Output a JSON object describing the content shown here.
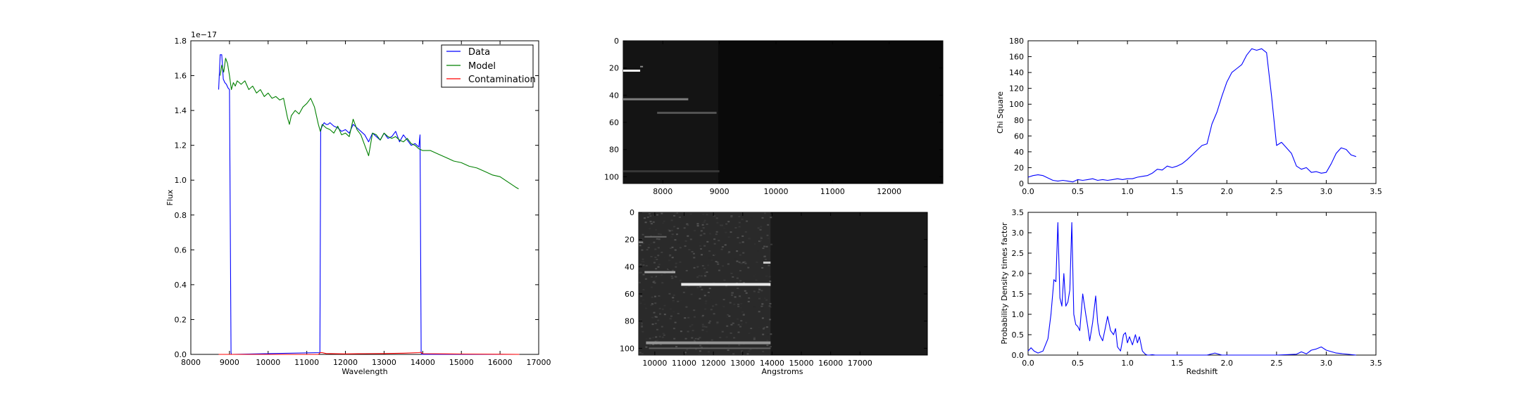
{
  "chart_data": [
    {
      "id": "spectrum",
      "type": "line",
      "xlabel": "Wavelength",
      "ylabel": "Flux",
      "xlim": [
        8000,
        17000
      ],
      "ylim": [
        0,
        1.8
      ],
      "y_offset_text": "1e−17",
      "xticks": [
        "8000",
        "9000",
        "10000",
        "11000",
        "12000",
        "13000",
        "14000",
        "15000",
        "16000",
        "17000"
      ],
      "yticks": [
        "0.0",
        "0.2",
        "0.4",
        "0.6",
        "0.8",
        "1.0",
        "1.2",
        "1.4",
        "1.6",
        "1.8"
      ],
      "legend": "top-right",
      "series": [
        {
          "name": "Data",
          "color": "#0000ff",
          "x": [
            8720,
            8760,
            8800,
            8840,
            8880,
            8920,
            8960,
            9000,
            9040,
            9050,
            11340,
            11360,
            11380,
            11400,
            11450,
            11500,
            11550,
            11600,
            11700,
            11800,
            11900,
            12000,
            12100,
            12200,
            12300,
            12400,
            12500,
            12600,
            12700,
            12800,
            12900,
            13000,
            13100,
            13200,
            13300,
            13400,
            13500,
            13600,
            13700,
            13800,
            13900,
            13930,
            13960,
            13970,
            14500,
            15000,
            16000,
            16500
          ],
          "y": [
            1.52,
            1.72,
            1.72,
            1.58,
            1.56,
            1.55,
            1.53,
            1.52,
            0.01,
            0.0,
            0.01,
            1.28,
            1.3,
            1.31,
            1.33,
            1.32,
            1.32,
            1.33,
            1.31,
            1.3,
            1.28,
            1.29,
            1.27,
            1.32,
            1.3,
            1.28,
            1.26,
            1.22,
            1.27,
            1.25,
            1.23,
            1.27,
            1.24,
            1.25,
            1.28,
            1.22,
            1.26,
            1.23,
            1.2,
            1.21,
            1.19,
            1.26,
            0.01,
            0.0,
            0.0,
            0.0,
            0.0,
            0.0
          ]
        },
        {
          "name": "Model",
          "color": "#008000",
          "x": [
            8760,
            8800,
            8850,
            8900,
            8950,
            9000,
            9050,
            9100,
            9150,
            9200,
            9300,
            9400,
            9500,
            9600,
            9700,
            9800,
            9900,
            10000,
            10100,
            10200,
            10300,
            10400,
            10500,
            10550,
            10600,
            10700,
            10800,
            10900,
            11000,
            11100,
            11200,
            11300,
            11350,
            11400,
            11500,
            11600,
            11700,
            11800,
            11900,
            12000,
            12100,
            12200,
            12300,
            12400,
            12500,
            12600,
            12700,
            12800,
            12900,
            13000,
            13100,
            13200,
            13300,
            13400,
            13500,
            13600,
            13700,
            13800,
            13900,
            14000,
            14200,
            14400,
            14600,
            14800,
            15000,
            15200,
            15400,
            15600,
            15800,
            16000,
            16200,
            16400,
            16480
          ],
          "y": [
            1.6,
            1.66,
            1.62,
            1.7,
            1.67,
            1.6,
            1.52,
            1.56,
            1.54,
            1.57,
            1.55,
            1.57,
            1.52,
            1.54,
            1.5,
            1.52,
            1.48,
            1.5,
            1.47,
            1.48,
            1.46,
            1.47,
            1.36,
            1.32,
            1.37,
            1.4,
            1.38,
            1.42,
            1.44,
            1.47,
            1.42,
            1.32,
            1.28,
            1.32,
            1.3,
            1.29,
            1.27,
            1.31,
            1.26,
            1.27,
            1.25,
            1.35,
            1.29,
            1.26,
            1.2,
            1.14,
            1.27,
            1.26,
            1.23,
            1.27,
            1.25,
            1.24,
            1.25,
            1.23,
            1.22,
            1.24,
            1.21,
            1.2,
            1.18,
            1.17,
            1.17,
            1.15,
            1.13,
            1.11,
            1.1,
            1.08,
            1.07,
            1.05,
            1.03,
            1.02,
            0.99,
            0.96,
            0.95
          ]
        },
        {
          "name": "Contamination",
          "color": "#ff0000",
          "x": [
            8720,
            9000,
            10000,
            11000,
            11300,
            11350,
            11400,
            11500,
            12000,
            12500,
            13000,
            13500,
            13900,
            13950,
            14000,
            15000,
            16000,
            16500
          ],
          "y": [
            0.0,
            0.0,
            0.0,
            0.0,
            0.0,
            0.01,
            0.01,
            0.005,
            0.003,
            0.004,
            0.005,
            0.007,
            0.01,
            0.012,
            0.004,
            0.002,
            0.001,
            0.0
          ]
        }
      ]
    },
    {
      "id": "image_top",
      "type": "heatmap",
      "xticks": [
        "8000",
        "9000",
        "10000",
        "11000",
        "12000"
      ],
      "yticks": [
        "0",
        "20",
        "40",
        "60",
        "80",
        "100"
      ],
      "xlim": [
        7300,
        12950
      ],
      "ylim": [
        105,
        0
      ],
      "streaks": [
        {
          "x0": 7300,
          "x1": 7600,
          "y": 22,
          "w": 3,
          "level": 1.0
        },
        {
          "x0": 7600,
          "x1": 7650,
          "y": 19,
          "w": 2,
          "level": 0.5
        },
        {
          "x0": 7300,
          "x1": 8450,
          "y": 43,
          "w": 3,
          "level": 0.45
        },
        {
          "x0": 7900,
          "x1": 8950,
          "y": 53,
          "w": 3,
          "level": 0.25
        },
        {
          "x0": 7300,
          "x1": 9000,
          "y": 96,
          "w": 3,
          "level": 0.12
        }
      ]
    },
    {
      "id": "image_bottom",
      "type": "heatmap",
      "xlabel": "Angstroms",
      "xticks": [
        "10000",
        "11000",
        "12000",
        "13000",
        "14000",
        "15000",
        "16000",
        "17000"
      ],
      "yticks": [
        "0",
        "20",
        "40",
        "60",
        "80",
        "100"
      ],
      "xlim": [
        9450,
        19300
      ],
      "ylim": [
        105,
        0
      ],
      "streaks": [
        {
          "x0": 9450,
          "x1": 9600,
          "y": 22,
          "w": 2,
          "level": 0.5
        },
        {
          "x0": 9650,
          "x1": 10400,
          "y": 18,
          "w": 2,
          "level": 0.35
        },
        {
          "x0": 9650,
          "x1": 10700,
          "y": 44,
          "w": 3,
          "level": 0.65
        },
        {
          "x0": 10900,
          "x1": 13950,
          "y": 53,
          "w": 4,
          "level": 0.95
        },
        {
          "x0": 13700,
          "x1": 13950,
          "y": 37,
          "w": 3,
          "level": 0.8
        },
        {
          "x0": 9700,
          "x1": 13950,
          "y": 96,
          "w": 4,
          "level": 0.55
        },
        {
          "x0": 9800,
          "x1": 13950,
          "y": 100,
          "w": 2,
          "level": 0.3
        }
      ]
    },
    {
      "id": "chisq",
      "type": "line",
      "ylabel": "Chi Square",
      "xlim": [
        0,
        3.5
      ],
      "ylim": [
        0,
        180
      ],
      "xticks": [
        "0.0",
        "0.5",
        "1.0",
        "1.5",
        "2.0",
        "2.5",
        "3.0",
        "3.5"
      ],
      "yticks": [
        "0",
        "20",
        "40",
        "60",
        "80",
        "100",
        "120",
        "140",
        "160",
        "180"
      ],
      "series": [
        {
          "color": "#0000ff",
          "x": [
            0.0,
            0.05,
            0.1,
            0.15,
            0.2,
            0.25,
            0.3,
            0.35,
            0.4,
            0.45,
            0.5,
            0.55,
            0.6,
            0.65,
            0.7,
            0.75,
            0.8,
            0.85,
            0.9,
            0.95,
            1.0,
            1.05,
            1.1,
            1.15,
            1.2,
            1.25,
            1.3,
            1.35,
            1.4,
            1.45,
            1.5,
            1.55,
            1.6,
            1.65,
            1.7,
            1.75,
            1.8,
            1.85,
            1.9,
            1.95,
            2.0,
            2.05,
            2.1,
            2.15,
            2.2,
            2.25,
            2.3,
            2.35,
            2.4,
            2.45,
            2.5,
            2.55,
            2.6,
            2.65,
            2.7,
            2.75,
            2.8,
            2.85,
            2.9,
            2.95,
            3.0,
            3.05,
            3.1,
            3.15,
            3.2,
            3.25,
            3.3
          ],
          "y": [
            8,
            10,
            11,
            10,
            7,
            4,
            3,
            4,
            3,
            2,
            5,
            4,
            5,
            6,
            4,
            5,
            4,
            5,
            6,
            5,
            6,
            6,
            8,
            9,
            10,
            13,
            18,
            17,
            22,
            20,
            22,
            25,
            30,
            36,
            42,
            48,
            50,
            75,
            90,
            110,
            128,
            140,
            145,
            150,
            162,
            170,
            168,
            170,
            165,
            110,
            48,
            52,
            45,
            38,
            22,
            18,
            20,
            14,
            15,
            13,
            14,
            25,
            38,
            45,
            43,
            36,
            34
          ]
        }
      ]
    },
    {
      "id": "pdf",
      "type": "line",
      "xlabel": "Redshift",
      "ylabel": "Probability Density times factor",
      "xlim": [
        0,
        3.5
      ],
      "ylim": [
        0,
        3.5
      ],
      "xticks": [
        "0.0",
        "0.5",
        "1.0",
        "1.5",
        "2.0",
        "2.5",
        "3.0",
        "3.5"
      ],
      "yticks": [
        "0.0",
        "0.5",
        "1.0",
        "1.5",
        "2.0",
        "2.5",
        "3.0",
        "3.5"
      ],
      "series": [
        {
          "color": "#0000ff",
          "x": [
            0.0,
            0.03,
            0.06,
            0.1,
            0.15,
            0.2,
            0.23,
            0.26,
            0.28,
            0.3,
            0.32,
            0.34,
            0.36,
            0.38,
            0.4,
            0.42,
            0.44,
            0.46,
            0.48,
            0.5,
            0.52,
            0.55,
            0.58,
            0.6,
            0.62,
            0.65,
            0.68,
            0.7,
            0.72,
            0.75,
            0.78,
            0.8,
            0.83,
            0.86,
            0.88,
            0.9,
            0.93,
            0.96,
            0.98,
            1.0,
            1.02,
            1.05,
            1.08,
            1.1,
            1.12,
            1.15,
            1.18,
            1.2,
            1.22,
            1.25,
            1.28,
            1.3,
            1.35,
            1.4,
            1.5,
            1.7,
            1.8,
            1.88,
            1.95,
            2.0,
            2.5,
            2.7,
            2.75,
            2.8,
            2.85,
            2.9,
            2.95,
            3.0,
            3.1,
            3.3
          ],
          "y": [
            0.1,
            0.18,
            0.1,
            0.05,
            0.1,
            0.4,
            1.0,
            1.85,
            1.8,
            3.25,
            1.4,
            1.2,
            2.0,
            1.2,
            1.3,
            1.6,
            3.25,
            1.0,
            0.75,
            0.7,
            0.6,
            1.5,
            1.0,
            0.7,
            0.35,
            0.8,
            1.45,
            0.8,
            0.5,
            0.35,
            0.7,
            0.95,
            0.6,
            0.5,
            0.65,
            0.2,
            0.1,
            0.5,
            0.55,
            0.3,
            0.45,
            0.25,
            0.5,
            0.3,
            0.45,
            0.1,
            0.02,
            0.0,
            0.0,
            0.01,
            0.0,
            0.0,
            0.0,
            0.0,
            0.0,
            0.0,
            0.0,
            0.05,
            0.0,
            0.0,
            0.0,
            0.02,
            0.08,
            0.03,
            0.12,
            0.15,
            0.2,
            0.12,
            0.05,
            0.0
          ]
        }
      ]
    }
  ]
}
